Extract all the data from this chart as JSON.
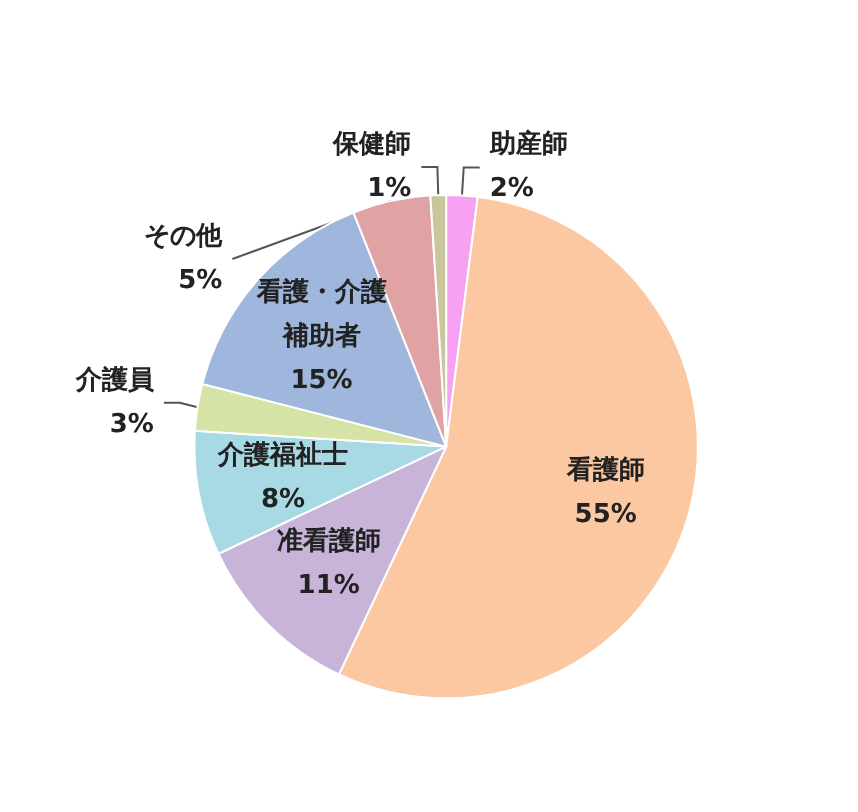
{
  "chart_data": {
    "type": "pie",
    "categories": [
      "助産師",
      "看護師",
      "准看護師",
      "介護福祉士",
      "介護員",
      "看護・介護補助者",
      "その他",
      "保健師"
    ],
    "values": [
      2,
      55,
      11,
      8,
      3,
      15,
      5,
      1
    ],
    "value_labels": [
      "2%",
      "55%",
      "11%",
      "8%",
      "3%",
      "15%",
      "5%",
      "1%"
    ],
    "colors": [
      "#f7a1f2",
      "#fcc8a2",
      "#c8b4d8",
      "#a8dae6",
      "#d5e3a6",
      "#9fb7dd",
      "#e0a2a2",
      "#c9c59c"
    ],
    "legend": false
  }
}
